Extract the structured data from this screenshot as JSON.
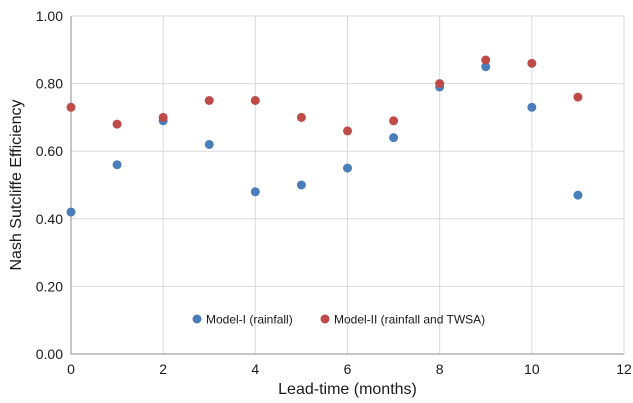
{
  "chart_data": {
    "type": "scatter",
    "xlabel": "Lead-time (months)",
    "ylabel": "Nash Sutcliffe Efficiency",
    "xlim": [
      0,
      12
    ],
    "ylim": [
      0,
      1.0
    ],
    "x_ticks": [
      "0",
      "2",
      "4",
      "6",
      "8",
      "10",
      "12"
    ],
    "y_ticks": [
      "0.00",
      "0.20",
      "0.40",
      "0.60",
      "0.80",
      "1.00"
    ],
    "grid": true,
    "legend_position": "bottom-center-inside",
    "series": [
      {
        "name": "Model-I (rainfall)",
        "color": "#4a7ebb",
        "x": [
          0,
          1,
          2,
          3,
          4,
          5,
          6,
          7,
          8,
          9,
          10,
          11
        ],
        "y": [
          0.42,
          0.56,
          0.69,
          0.62,
          0.48,
          0.5,
          0.55,
          0.64,
          0.79,
          0.85,
          0.73,
          0.47
        ]
      },
      {
        "name": "Model-II (rainfall and TWSA)",
        "color": "#be4b48",
        "x": [
          0,
          1,
          2,
          3,
          4,
          5,
          6,
          7,
          8,
          9,
          10,
          11
        ],
        "y": [
          0.73,
          0.68,
          0.7,
          0.75,
          0.75,
          0.7,
          0.66,
          0.69,
          0.8,
          0.87,
          0.86,
          0.76
        ]
      }
    ]
  }
}
